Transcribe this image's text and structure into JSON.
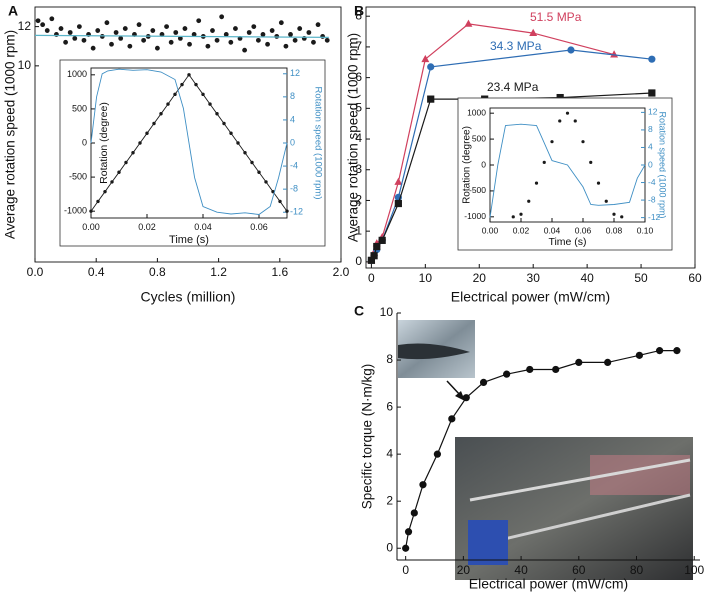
{
  "chart_data": [
    {
      "type": "scatter",
      "label": "A",
      "xlabel": "Cycles (million)",
      "ylabel": "Average rotation speed (1000 rpm)",
      "xlim": [
        0,
        2
      ],
      "ylim": [
        0,
        13
      ],
      "xticks": [
        {
          "value": 0,
          "label": "0.0"
        },
        0.4,
        0.8,
        1.2,
        1.6,
        {
          "value": 2,
          "label": "2.0"
        }
      ],
      "yticks": [
        10,
        12
      ],
      "series": [
        {
          "color": "#1a1a1a",
          "style": "markers",
          "marker": "circle",
          "x": [
            0.02,
            0.05,
            0.08,
            0.11,
            0.14,
            0.17,
            0.2,
            0.23,
            0.26,
            0.29,
            0.32,
            0.35,
            0.38,
            0.41,
            0.44,
            0.47,
            0.5,
            0.53,
            0.56,
            0.59,
            0.62,
            0.65,
            0.68,
            0.71,
            0.74,
            0.77,
            0.8,
            0.83,
            0.86,
            0.89,
            0.92,
            0.95,
            0.98,
            1.01,
            1.04,
            1.07,
            1.1,
            1.13,
            1.16,
            1.19,
            1.22,
            1.25,
            1.28,
            1.31,
            1.34,
            1.37,
            1.4,
            1.43,
            1.46,
            1.49,
            1.52,
            1.55,
            1.58,
            1.61,
            1.64,
            1.67,
            1.7,
            1.73,
            1.76,
            1.79,
            1.82,
            1.85,
            1.88,
            1.91
          ],
          "values": [
            12.3,
            12.1,
            11.8,
            12.4,
            11.6,
            11.9,
            11.2,
            11.7,
            11.4,
            12.0,
            11.3,
            11.6,
            10.9,
            11.8,
            11.5,
            12.2,
            11.1,
            11.7,
            11.4,
            11.9,
            11.0,
            11.6,
            12.1,
            11.3,
            11.5,
            11.8,
            10.9,
            11.6,
            12.0,
            11.2,
            11.7,
            11.4,
            11.9,
            11.1,
            11.6,
            12.3,
            11.5,
            11.0,
            11.8,
            11.3,
            12.5,
            11.6,
            11.2,
            11.9,
            11.4,
            10.8,
            11.7,
            12.0,
            11.3,
            11.6,
            11.1,
            11.8,
            11.5,
            12.2,
            11.0,
            11.6,
            11.3,
            11.9,
            11.4,
            11.7,
            11.2,
            12.1,
            11.5,
            11.3
          ]
        },
        {
          "color": "#5ab4c8",
          "style": "line",
          "x": [
            0,
            1.92
          ],
          "values": [
            11.55,
            11.45
          ]
        }
      ]
    },
    {
      "type": "line",
      "xlabel": "Time (s)",
      "ylabel": "Rotation (degree)",
      "y2label": "Rotation speed (1000 rpm)",
      "xlim": [
        0,
        0.07
      ],
      "ylim": [
        -1100,
        1100
      ],
      "y2lim": [
        -13,
        13
      ],
      "xticks": [
        {
          "value": 0,
          "label": "0.00"
        },
        0.02,
        0.04,
        0.06
      ],
      "yticks": [
        -1000,
        -500,
        0,
        500,
        1000
      ],
      "y2ticks": [
        -12,
        -8,
        -4,
        0,
        4,
        8,
        12
      ],
      "series": [
        {
          "color": "#1a1a1a",
          "style": "line+markers",
          "marker": "circle",
          "x": [
            0,
            0.0025,
            0.005,
            0.0075,
            0.01,
            0.0125,
            0.015,
            0.0175,
            0.02,
            0.0225,
            0.025,
            0.0275,
            0.03,
            0.0325,
            0.035,
            0.0375,
            0.04,
            0.0425,
            0.045,
            0.0475,
            0.05,
            0.0525,
            0.055,
            0.0575,
            0.06,
            0.0625,
            0.065,
            0.0675,
            0.07
          ],
          "values": [
            -1000,
            -857,
            -714,
            -571,
            -429,
            -286,
            -143,
            0,
            143,
            286,
            429,
            571,
            714,
            857,
            1000,
            857,
            714,
            571,
            429,
            286,
            143,
            0,
            -143,
            -286,
            -429,
            -571,
            -714,
            -857,
            -1000
          ]
        },
        {
          "color": "#3f8fc4",
          "style": "line",
          "axis": "y2",
          "x": [
            0,
            0.002,
            0.004,
            0.006,
            0.01,
            0.015,
            0.02,
            0.025,
            0.03,
            0.033,
            0.035,
            0.037,
            0.04,
            0.045,
            0.05,
            0.055,
            0.06,
            0.064,
            0.067,
            0.07
          ],
          "values": [
            0,
            8,
            12,
            12.5,
            12.8,
            12.6,
            12.7,
            12.3,
            11,
            6,
            0,
            -6,
            -11,
            -12,
            -12.3,
            -12.1,
            -12.4,
            -11,
            -6,
            0
          ]
        }
      ]
    },
    {
      "type": "line",
      "label": "B",
      "xlabel": "Electrical power (mW/cm)",
      "ylabel": "Average rotation speed (1000 rpm)",
      "xlim": [
        -1,
        60
      ],
      "ylim": [
        -0.2,
        8.3
      ],
      "xticks": [
        0,
        10,
        20,
        30,
        40,
        50,
        60
      ],
      "yticks": [
        0,
        1,
        2,
        3,
        4,
        5,
        6,
        7,
        8
      ],
      "series": [
        {
          "name": "51.5 MPa",
          "color": "#d0405e",
          "style": "line+markers",
          "marker": "triangle",
          "x": [
            0,
            0.5,
            1,
            2,
            5,
            10,
            18,
            30,
            45
          ],
          "values": [
            0.05,
            0.3,
            0.6,
            0.8,
            2.6,
            6.6,
            7.75,
            7.45,
            6.75
          ]
        },
        {
          "name": "34.3 MPa",
          "color": "#2e6db4",
          "style": "line+markers",
          "marker": "circle",
          "x": [
            0,
            0.5,
            1,
            2,
            5,
            11,
            37,
            52
          ],
          "values": [
            0.05,
            0.2,
            0.4,
            0.7,
            2.1,
            6.35,
            6.9,
            6.6
          ]
        },
        {
          "name": "23.4 MPa",
          "color": "#1a1a1a",
          "style": "line+markers",
          "marker": "square",
          "x": [
            0,
            0.5,
            1,
            2,
            5,
            11,
            21,
            35,
            52
          ],
          "values": [
            0.05,
            0.2,
            0.5,
            0.7,
            1.9,
            5.3,
            5.3,
            5.35,
            5.5
          ]
        }
      ]
    },
    {
      "type": "line",
      "xlabel": "Time (s)",
      "ylabel": "Rotation (degree)",
      "y2label": "Rotation speed (1000 rpm)",
      "xlim": [
        0,
        0.1
      ],
      "ylim": [
        -1100,
        1100
      ],
      "y2lim": [
        -13,
        13
      ],
      "xticks": [
        {
          "value": 0,
          "label": "0.00"
        },
        0.02,
        0.04,
        0.06,
        0.08,
        {
          "value": 0.1,
          "label": "0.10"
        }
      ],
      "yticks": [
        -1000,
        -500,
        0,
        500,
        1000
      ],
      "y2ticks": [
        -12,
        -8,
        -4,
        0,
        4,
        8,
        12
      ],
      "series": [
        {
          "color": "#1a1a1a",
          "style": "markers",
          "marker": "circle",
          "x": [
            0.015,
            0.02,
            0.025,
            0.03,
            0.035,
            0.04,
            0.045,
            0.05,
            0.055,
            0.06,
            0.065,
            0.07,
            0.075,
            0.08,
            0.085
          ],
          "values": [
            -1000,
            -950,
            -700,
            -350,
            50,
            450,
            850,
            1000,
            850,
            450,
            50,
            -350,
            -700,
            -950,
            -1000
          ]
        },
        {
          "color": "#3f8fc4",
          "style": "line",
          "axis": "y2",
          "x": [
            0,
            0.005,
            0.01,
            0.02,
            0.03,
            0.035,
            0.04,
            0.05,
            0.06,
            0.065,
            0.07,
            0.08,
            0.09,
            0.095,
            0.1
          ],
          "values": [
            -12,
            0,
            9,
            9.3,
            9,
            5,
            1,
            0,
            -5,
            -9,
            -9.2,
            -9,
            -8.5,
            -3,
            0
          ]
        }
      ]
    },
    {
      "type": "line",
      "label": "C",
      "xlabel": "Electrical power (mW/cm)",
      "ylabel": "Specific torque (N·m/kg)",
      "xlim": [
        -3,
        102
      ],
      "ylim": [
        -0.5,
        10
      ],
      "xticks": [
        0,
        20,
        40,
        60,
        80,
        100
      ],
      "yticks": [
        0,
        2,
        4,
        6,
        8,
        10
      ],
      "series": [
        {
          "color": "#111111",
          "style": "line+markers",
          "marker": "circle",
          "x": [
            0,
            1,
            3,
            6,
            11,
            16,
            21,
            27,
            35,
            43,
            52,
            60,
            70,
            81,
            88,
            94
          ],
          "values": [
            0,
            0.7,
            1.5,
            2.7,
            4,
            5.5,
            6.4,
            7.05,
            7.4,
            7.6,
            7.6,
            7.9,
            7.9,
            8.2,
            8.4,
            8.4
          ]
        }
      ]
    }
  ]
}
